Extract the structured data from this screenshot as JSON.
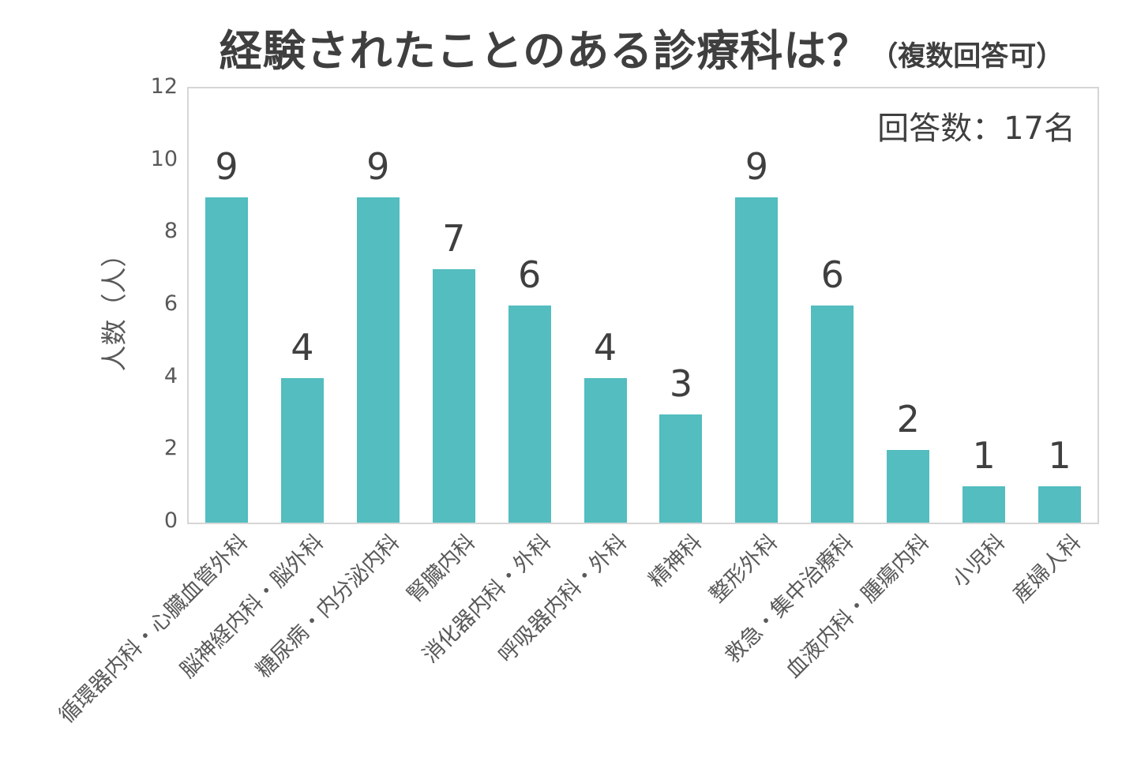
{
  "chart_data": {
    "type": "bar",
    "title": "経験されたことのある診療科は？",
    "title_suffix": "（複数回答可）",
    "annotation": "回答数：17名",
    "ylabel": "人数（人）",
    "xlabel": "",
    "categories": [
      "循環器内科・心臓血管外科",
      "脳神経内科・脳外科",
      "糖尿病・内分泌内科",
      "腎臓内科",
      "消化器内科・外科",
      "呼吸器内科・外科",
      "精神科",
      "整形外科",
      "救急・集中治療科",
      "血液内科・腫瘍内科",
      "小児科",
      "産婦人科"
    ],
    "values": [
      9,
      4,
      9,
      7,
      6,
      4,
      3,
      9,
      6,
      2,
      1,
      1
    ],
    "ylim": [
      0,
      12
    ],
    "yticks": [
      0,
      2,
      4,
      6,
      8,
      10,
      12
    ],
    "grid": "off",
    "legend": "none",
    "bar_color": "#53BDBF",
    "title_color": "#3F3F3F",
    "data_label_color": "#3F3F3F",
    "axis_text_color": "#595959",
    "plot_border_color": "#D6D6D6"
  }
}
